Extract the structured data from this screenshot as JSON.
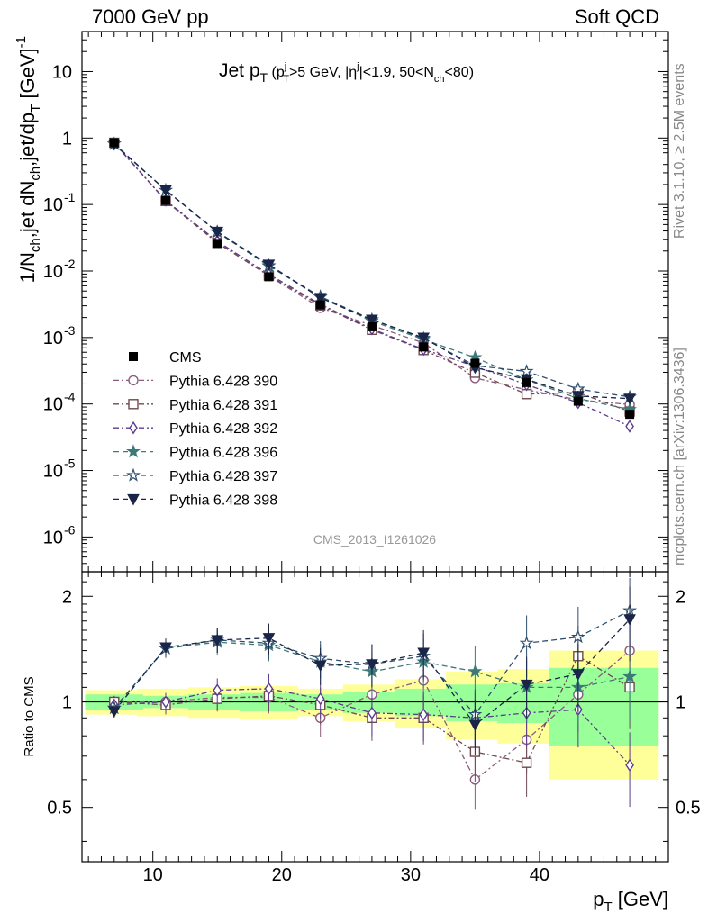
{
  "header": {
    "left": "7000 GeV pp",
    "right": "Soft QCD"
  },
  "side_text": {
    "top": "Rivet 3.1.10, ≥ 2.5M events",
    "bottom": "mcplots.cern.ch [arXiv:1306.3436]"
  },
  "analysis_id": "CMS_2013_I1261026",
  "chart_data": {
    "type": "line",
    "title": "Jet p_T (p_T^j>5 GeV, |η^j|<1.9, 50<N_ch<80)",
    "title_main": "Jet p",
    "title_main_sub": "T",
    "title_cuts": "(pⱼ>5 GeV, |ηʲ|<1.9, 50<N_ch<80)",
    "xlabel": "p_T [GeV]",
    "ylabel_top": "1/N_ch,jet dN_ch,jet/dp_T [GeV]^-1",
    "ylabel_ratio": "Ratio to CMS",
    "xlim": [
      4.5,
      50
    ],
    "ylim_top": [
      3e-07,
      40
    ],
    "ylog_top": true,
    "ylim_ratio": [
      0.35,
      2.35
    ],
    "ylog_ratio": true,
    "x_ticks": [
      10,
      20,
      30,
      40
    ],
    "y_ticks_ratio": [
      0.5,
      1,
      2
    ],
    "x": [
      7,
      11,
      15,
      19,
      23,
      27,
      31,
      35,
      39,
      43,
      47
    ],
    "data": {
      "name": "CMS",
      "values": [
        0.85,
        0.115,
        0.026,
        0.0082,
        0.0031,
        0.00145,
        0.00072,
        0.00041,
        0.00021,
        0.00011,
        7e-05
      ],
      "band_green_half": [
        0.05,
        0.04,
        0.05,
        0.06,
        0.05,
        0.07,
        0.09,
        0.12,
        0.13,
        0.25,
        0.25
      ],
      "band_yellow_half": [
        0.08,
        0.09,
        0.1,
        0.11,
        0.09,
        0.12,
        0.16,
        0.22,
        0.24,
        0.4,
        0.4
      ]
    },
    "series": [
      {
        "name": "Pythia 6.428 390",
        "color": "#8c5b7e",
        "marker": "circle-open",
        "dash": "dashdot",
        "ratio": [
          1.0,
          1.0,
          1.03,
          1.03,
          0.9,
          1.05,
          1.15,
          0.6,
          0.78,
          1.05,
          1.4
        ]
      },
      {
        "name": "Pythia 6.428 391",
        "color": "#6e4a50",
        "marker": "square-open",
        "dash": "dashdot",
        "ratio": [
          1.0,
          0.98,
          1.02,
          1.04,
          0.98,
          0.9,
          0.9,
          0.72,
          0.67,
          1.35,
          1.1
        ]
      },
      {
        "name": "Pythia 6.428 392",
        "color": "#5c3b8c",
        "marker": "diamond-open",
        "dash": "dashdot",
        "ratio": [
          0.98,
          1.0,
          1.08,
          1.09,
          1.02,
          0.93,
          0.92,
          0.9,
          0.93,
          0.95,
          0.66
        ]
      },
      {
        "name": "Pythia 6.428 396",
        "color": "#3c7a7a",
        "marker": "star",
        "dash": "dash",
        "ratio": [
          0.96,
          1.42,
          1.48,
          1.45,
          1.3,
          1.22,
          1.3,
          1.22,
          1.1,
          1.1,
          1.18
        ]
      },
      {
        "name": "Pythia 6.428 397",
        "color": "#2e4f6e",
        "marker": "star-open",
        "dash": "dash",
        "ratio": [
          0.96,
          1.42,
          1.5,
          1.47,
          1.33,
          1.28,
          1.35,
          0.92,
          1.47,
          1.53,
          1.82
        ]
      },
      {
        "name": "Pythia 6.428 398",
        "color": "#1a2548",
        "marker": "triangle-down",
        "dash": "dash",
        "ratio": [
          0.94,
          1.43,
          1.5,
          1.52,
          1.27,
          1.28,
          1.38,
          0.86,
          1.12,
          1.2,
          1.72
        ]
      }
    ]
  }
}
